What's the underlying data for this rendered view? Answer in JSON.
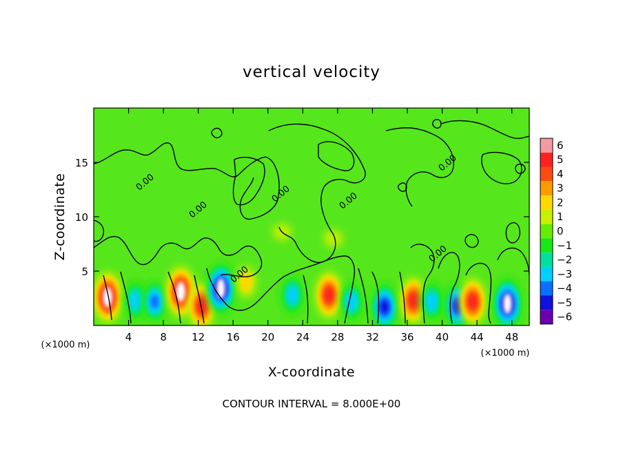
{
  "chart_data": {
    "type": "heatmap",
    "title": "vertical velocity",
    "xlabel": "X-coordinate",
    "ylabel": "Z-coordinate",
    "x_unit": "(×1000 m)",
    "x_range": [
      0,
      50
    ],
    "y_range": [
      0,
      20
    ],
    "x_ticks": [
      4,
      8,
      12,
      16,
      20,
      24,
      28,
      32,
      36,
      40,
      44,
      48
    ],
    "y_ticks": [
      5,
      10,
      15
    ],
    "contour_interval_note": "CONTOUR INTERVAL = 8.000E+00",
    "contour_labels": [
      "0.00",
      "0.00",
      "0.00",
      "0.00",
      "0.00",
      "0.00",
      "0.00"
    ],
    "colorbar": {
      "range": [
        -6,
        6
      ],
      "tick_labels": [
        "6",
        "5",
        "4",
        "3",
        "2",
        "1",
        "0",
        "−1",
        "−2",
        "−3",
        "−4",
        "−5",
        "−6"
      ],
      "colors": [
        "#f59aa2",
        "#ff2020",
        "#ff4a10",
        "#ff9a00",
        "#ffd800",
        "#c8f000",
        "#66ee00",
        "#18e818",
        "#00e0a0",
        "#00d0ff",
        "#0a70ff",
        "#1010e0",
        "#6a00b0"
      ]
    },
    "features": [
      {
        "x": 1.6,
        "z": 2.6,
        "value": 6
      },
      {
        "x": 4.8,
        "z": 2.3,
        "value": -3
      },
      {
        "x": 7.0,
        "z": 2.2,
        "value": -3.5
      },
      {
        "x": 10.0,
        "z": 3.1,
        "value": 6
      },
      {
        "x": 12.4,
        "z": 1.8,
        "value": 5
      },
      {
        "x": 14.6,
        "z": 3.4,
        "value": -6
      },
      {
        "x": 17.5,
        "z": 4.0,
        "value": 1.5
      },
      {
        "x": 22.8,
        "z": 2.8,
        "value": -3
      },
      {
        "x": 27.0,
        "z": 2.8,
        "value": 5
      },
      {
        "x": 29.6,
        "z": 2.2,
        "value": -3
      },
      {
        "x": 33.4,
        "z": 1.7,
        "value": -5
      },
      {
        "x": 36.7,
        "z": 2.3,
        "value": 5
      },
      {
        "x": 38.8,
        "z": 2.2,
        "value": -3
      },
      {
        "x": 41.8,
        "z": 1.8,
        "value": -5
      },
      {
        "x": 43.5,
        "z": 2.2,
        "value": 5
      },
      {
        "x": 47.5,
        "z": 2.0,
        "value": -6
      },
      {
        "x": 21.6,
        "z": 8.6,
        "value": 1
      },
      {
        "x": 27.5,
        "z": 8.0,
        "value": 1.2
      }
    ]
  }
}
